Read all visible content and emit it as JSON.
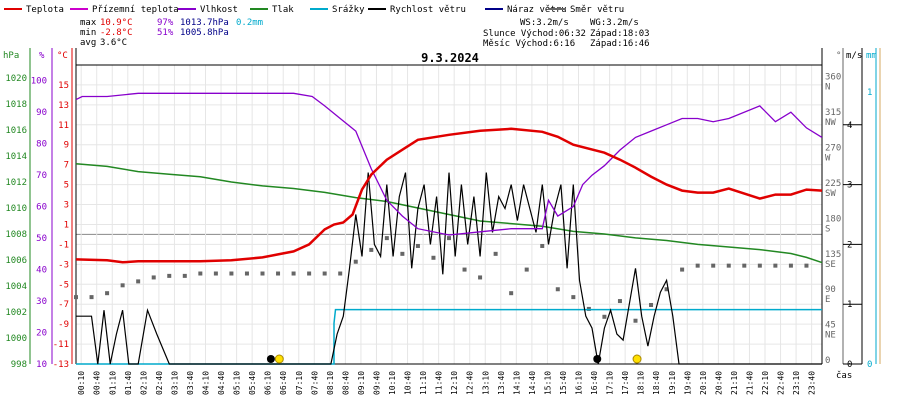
{
  "chart_data": {
    "type": "line",
    "title": "9.3.2024",
    "legend": [
      {
        "name": "Teplota",
        "color": "#e00000"
      },
      {
        "name": "Přízemní teplota",
        "color": "#cc00cc"
      },
      {
        "name": "Vlhkost",
        "color": "#8800cc"
      },
      {
        "name": "Tlak",
        "color": "#228822"
      },
      {
        "name": "Srážky",
        "color": "#00aacc"
      },
      {
        "name": "Rychlost větru",
        "color": "#000000"
      },
      {
        "name": "Náraz větru",
        "color": "#000088"
      },
      {
        "name": "Směr větru",
        "color": "#666666"
      }
    ],
    "stats": {
      "max_label": "max",
      "min_label": "min",
      "avg_label": "avg",
      "temp_max": "10.9°C",
      "temp_min": "-2.8°C",
      "temp_avg": "3.6°C",
      "hum_max": "97%",
      "hum_min": "51%",
      "press_max": "1013.7hPa",
      "press_min": "1005.8hPa",
      "rain": "0.2mm"
    },
    "info": {
      "ws": "WS:3.2m/s",
      "wg": "WG:3.2m/s",
      "sun": "Slunce Východ:06:32",
      "sun_set": "Západ:18:03",
      "moon": "Měsíc  Východ:6:16",
      "moon_set": "Západ:16:46"
    },
    "axis_units": {
      "hpa": "hPa",
      "pct": "%",
      "temp": "°C",
      "dir": "°",
      "ms": "m/s",
      "mm": "mm",
      "time": "čas"
    },
    "x_range": [
      0,
      24
    ],
    "x_ticks": [
      "00:10",
      "00:40",
      "01:10",
      "01:40",
      "02:10",
      "02:40",
      "03:10",
      "03:40",
      "04:10",
      "04:40",
      "05:10",
      "05:40",
      "06:10",
      "06:40",
      "07:10",
      "07:40",
      "08:10",
      "08:40",
      "09:10",
      "09:40",
      "10:10",
      "10:40",
      "11:10",
      "11:40",
      "12:10",
      "12:40",
      "13:10",
      "13:40",
      "14:10",
      "14:40",
      "15:10",
      "15:40",
      "16:10",
      "16:40",
      "17:10",
      "17:40",
      "18:10",
      "18:40",
      "19:10",
      "19:40",
      "20:10",
      "20:40",
      "21:10",
      "21:40",
      "22:10",
      "22:40",
      "23:10",
      "23:40"
    ],
    "temp_axis": {
      "range": [
        -13,
        17
      ],
      "ticks": [
        "15",
        "13",
        "11",
        "9",
        "7",
        "5",
        "3",
        "1",
        "-1",
        "-3",
        "-5",
        "-7",
        "-9",
        "-11",
        "-13"
      ]
    },
    "humidity_axis": {
      "range": [
        10,
        105
      ],
      "ticks": [
        "100",
        "90",
        "80",
        "70",
        "60",
        "50",
        "40",
        "30",
        "20",
        "10"
      ]
    },
    "pressure_axis": {
      "range": [
        998,
        1021
      ],
      "ticks": [
        "1020",
        "1018",
        "1016",
        "1014",
        "1012",
        "1010",
        "1008",
        "1006",
        "1004",
        "1002",
        "1000",
        "998"
      ]
    },
    "direction_axis": {
      "range": [
        0,
        380
      ],
      "ticks": [
        {
          "deg": "360",
          "dir": "N"
        },
        {
          "deg": "315",
          "dir": "NW"
        },
        {
          "deg": "270",
          "dir": "W"
        },
        {
          "deg": "225",
          "dir": "SW"
        },
        {
          "deg": "180",
          "dir": "S"
        },
        {
          "deg": "135",
          "dir": "SE"
        },
        {
          "deg": "90",
          "dir": "E"
        },
        {
          "deg": "45",
          "dir": "NE"
        },
        {
          "deg": "0",
          "dir": ""
        }
      ]
    },
    "wind_axis": {
      "range": [
        0,
        5
      ],
      "ticks": [
        "4",
        "3",
        "2",
        "1",
        "0"
      ]
    },
    "rain_axis": {
      "range": [
        0,
        1.1
      ],
      "ticks": [
        "1",
        "0"
      ]
    },
    "series": {
      "temperature": {
        "name": "Teplota",
        "color": "#e00000",
        "x": [
          0,
          1,
          1.5,
          2,
          3,
          4,
          5,
          6,
          6.5,
          7,
          7.5,
          8,
          8.3,
          8.6,
          8.9,
          9.2,
          9.5,
          10,
          10.5,
          11,
          12,
          13,
          14,
          15,
          15.5,
          16,
          17,
          17.5,
          18,
          18.5,
          19,
          19.5,
          20,
          20.5,
          21,
          22,
          22.5,
          23,
          23.5,
          24
        ],
        "values": [
          -2.5,
          -2.6,
          -2.8,
          -2.7,
          -2.7,
          -2.7,
          -2.6,
          -2.3,
          -2.0,
          -1.7,
          -1.0,
          0.5,
          1.0,
          1.2,
          2.0,
          4.5,
          6.0,
          7.5,
          8.5,
          9.5,
          10.0,
          10.4,
          10.6,
          10.3,
          9.8,
          9.0,
          8.2,
          7.5,
          6.7,
          5.8,
          5.0,
          4.4,
          4.2,
          4.2,
          4.6,
          3.6,
          4.0,
          4.0,
          4.5,
          4.4
        ]
      },
      "humidity": {
        "name": "Vlhkost",
        "color": "#8800cc",
        "x": [
          0,
          0.2,
          1,
          2,
          3,
          4,
          5,
          6,
          7,
          7.6,
          8,
          8.5,
          9,
          9.5,
          10,
          10.5,
          11,
          12,
          13,
          14,
          15,
          15.2,
          15.5,
          16,
          16.3,
          16.6,
          17,
          17.5,
          18,
          18.5,
          19,
          19.5,
          20,
          20.5,
          21,
          22,
          22.5,
          23,
          23.5,
          24
        ],
        "values": [
          94,
          95,
          95,
          96,
          96,
          96,
          96,
          96,
          96,
          95,
          92,
          88,
          84,
          72,
          62,
          57,
          53,
          51,
          52,
          53,
          53,
          62,
          57,
          60,
          67,
          70,
          73,
          78,
          82,
          84,
          86,
          88,
          88,
          87,
          88,
          92,
          87,
          90,
          85,
          82
        ]
      },
      "pressure": {
        "name": "Tlak",
        "color": "#228822",
        "x": [
          0,
          1,
          2,
          3,
          4,
          5,
          6,
          7,
          8,
          9,
          10,
          11,
          12,
          13,
          14,
          15,
          16,
          17,
          18,
          19,
          20,
          21,
          22,
          23,
          23.5,
          24
        ],
        "values": [
          1013.4,
          1013.2,
          1012.8,
          1012.6,
          1012.4,
          1012.0,
          1011.7,
          1011.5,
          1011.2,
          1010.8,
          1010.5,
          1010.0,
          1009.5,
          1009.0,
          1008.8,
          1008.6,
          1008.2,
          1008.0,
          1007.7,
          1007.5,
          1007.2,
          1007.0,
          1006.8,
          1006.5,
          1006.2,
          1005.8
        ]
      },
      "rain": {
        "name": "Srážky",
        "color": "#00aacc",
        "x": [
          0,
          8.3,
          8.3,
          8.35,
          24
        ],
        "values": [
          0,
          0,
          0.15,
          0.2,
          0.2
        ]
      },
      "wind_speed": {
        "name": "Rychlost větru",
        "color": "#000000",
        "x": [
          0,
          0.5,
          0.7,
          0.9,
          1.1,
          1.3,
          1.5,
          1.7,
          2,
          2.3,
          2.6,
          3,
          3.5,
          4,
          4.5,
          5,
          5.5,
          6,
          6.5,
          7,
          7.5,
          8,
          8.2,
          8.4,
          8.6,
          8.8,
          9,
          9.2,
          9.4,
          9.6,
          9.8,
          10,
          10.2,
          10.4,
          10.6,
          10.8,
          11,
          11.2,
          11.4,
          11.6,
          11.8,
          12,
          12.2,
          12.4,
          12.6,
          12.8,
          13,
          13.2,
          13.4,
          13.6,
          13.8,
          14,
          14.2,
          14.4,
          14.6,
          14.8,
          15,
          15.2,
          15.4,
          15.6,
          15.8,
          16,
          16.2,
          16.4,
          16.6,
          16.8,
          17,
          17.2,
          17.4,
          17.6,
          17.8,
          18,
          18.2,
          18.4,
          18.6,
          18.8,
          19,
          19.2,
          19.4,
          20,
          20.5,
          21,
          21.5,
          22,
          22.5,
          23,
          23.5,
          24
        ],
        "values": [
          0.8,
          0.8,
          0,
          0.9,
          0,
          0.5,
          0.9,
          0,
          0,
          0.9,
          0.5,
          0,
          0,
          0,
          0,
          0,
          0,
          0,
          0,
          0,
          0,
          0,
          0,
          0.5,
          0.8,
          1.6,
          2.5,
          1.8,
          3.2,
          2.0,
          1.8,
          3.0,
          1.8,
          2.8,
          3.2,
          1.6,
          2.6,
          3.0,
          2.0,
          2.8,
          1.5,
          3.2,
          1.8,
          3.0,
          2.0,
          2.8,
          1.8,
          3.2,
          2.2,
          2.8,
          2.6,
          3.0,
          2.4,
          3.0,
          2.6,
          2.2,
          3.0,
          2.0,
          2.6,
          3.0,
          1.6,
          3.0,
          1.4,
          0.8,
          0.6,
          0,
          0.6,
          0.9,
          0.5,
          0.4,
          1.0,
          1.6,
          0.8,
          0.3,
          0.8,
          1.2,
          1.4,
          0.8,
          0,
          0,
          0,
          0,
          0,
          0,
          0,
          0,
          0,
          0
        ]
      },
      "wind_direction": {
        "name": "Směr větru",
        "color": "#666666",
        "x": [
          0,
          0.5,
          1,
          1.5,
          2,
          2.5,
          3,
          3.5,
          4,
          4.5,
          5,
          5.5,
          6,
          6.5,
          7,
          7.5,
          8,
          8.5,
          9,
          9.5,
          10,
          10.5,
          11,
          11.5,
          12,
          12.5,
          13,
          13.5,
          14,
          14.5,
          15,
          15.5,
          16,
          16.5,
          17,
          17.5,
          18,
          18.5,
          19,
          19.5,
          20,
          20.5,
          21,
          21.5,
          22,
          22.5,
          23,
          23.5
        ],
        "values": [
          85,
          85,
          90,
          100,
          105,
          110,
          112,
          112,
          115,
          115,
          115,
          115,
          115,
          115,
          115,
          115,
          115,
          115,
          130,
          145,
          160,
          140,
          150,
          135,
          160,
          120,
          110,
          140,
          90,
          120,
          150,
          95,
          85,
          70,
          60,
          80,
          55,
          75,
          95,
          120,
          125,
          125,
          125,
          125,
          125,
          125,
          125,
          125
        ]
      }
    },
    "markers": [
      {
        "label": "sunrise",
        "x": 6.54
      },
      {
        "label": "moonrise",
        "x": 6.27
      },
      {
        "label": "sunset",
        "x": 18.05
      },
      {
        "label": "moonset",
        "x": 16.77
      }
    ]
  }
}
